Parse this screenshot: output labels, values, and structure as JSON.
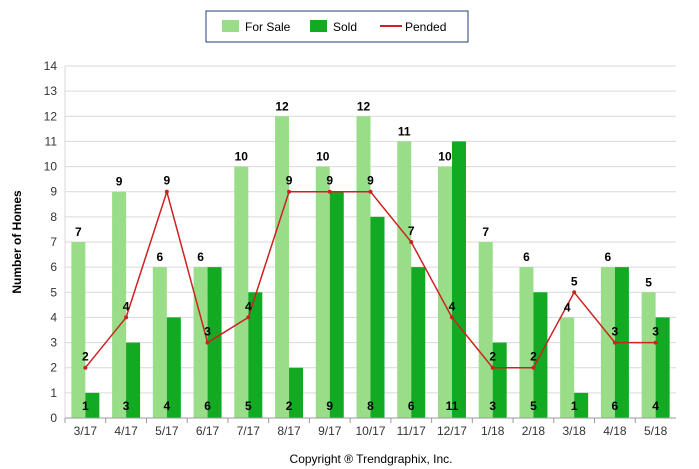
{
  "chart_data": {
    "type": "bar",
    "categories": [
      "3/17",
      "4/17",
      "5/17",
      "6/17",
      "7/17",
      "8/17",
      "9/17",
      "10/17",
      "11/17",
      "12/17",
      "1/18",
      "2/18",
      "3/18",
      "4/18",
      "5/18"
    ],
    "series": [
      {
        "name": "For Sale",
        "type": "bar",
        "color": "#99dd88",
        "values": [
          7,
          9,
          6,
          6,
          10,
          12,
          10,
          12,
          11,
          10,
          7,
          6,
          4,
          6,
          5
        ]
      },
      {
        "name": "Sold",
        "type": "bar",
        "color": "#11aa22",
        "values": [
          1,
          3,
          4,
          6,
          5,
          2,
          9,
          8,
          6,
          11,
          3,
          5,
          1,
          6,
          4
        ]
      },
      {
        "name": "Pended",
        "type": "line",
        "color": "#cc2222",
        "values": [
          2,
          4,
          9,
          3,
          4,
          9,
          9,
          9,
          7,
          4,
          2,
          2,
          5,
          3,
          3
        ]
      }
    ],
    "ylabel": "Number of Homes",
    "ylim": [
      0,
      14
    ],
    "yticks": [
      0,
      1,
      2,
      3,
      4,
      5,
      6,
      7,
      8,
      9,
      10,
      11,
      12,
      13,
      14
    ],
    "grid": true,
    "legend_position": "top-center",
    "footer": "Copyright ® Trendgraphix, Inc."
  }
}
